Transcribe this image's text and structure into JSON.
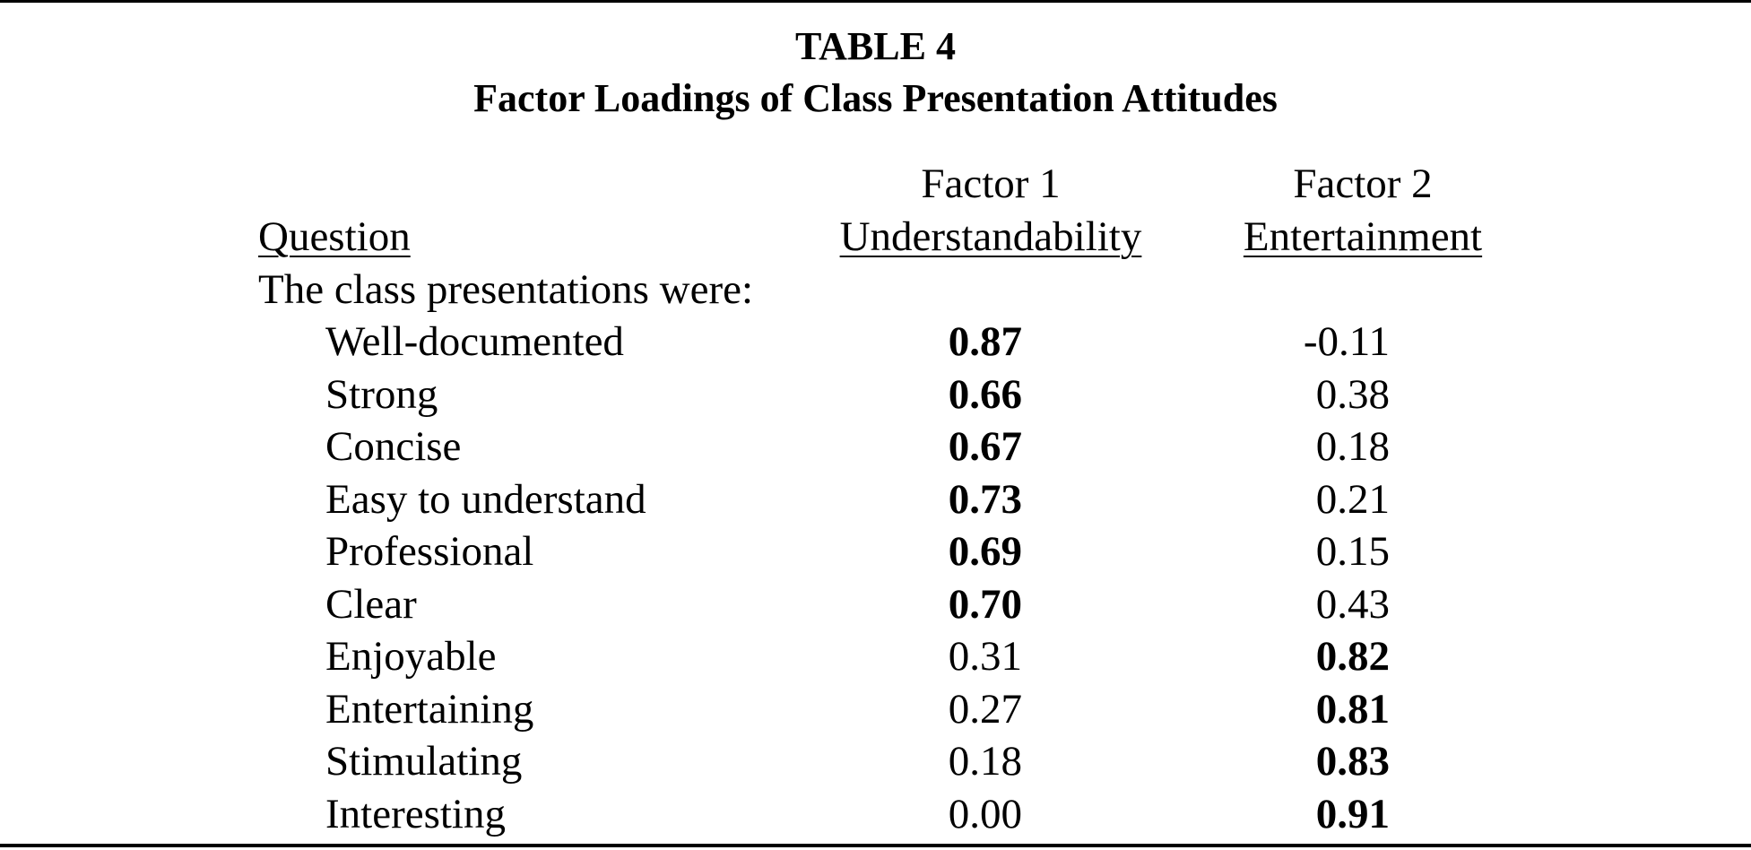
{
  "table": {
    "title": "TABLE 4",
    "subtitle": "Factor Loadings of Class Presentation Attitudes",
    "headers": {
      "question": "Question",
      "factor1_line1": "Factor 1",
      "factor1_line2": "Understandability",
      "factor2_line1": "Factor 2",
      "factor2_line2": "Entertainment"
    },
    "intro": "The class presentations were:",
    "rows": [
      {
        "label": "Well-documented",
        "f1": "0.87",
        "f2": "-0.11",
        "bold": "f1"
      },
      {
        "label": "Strong",
        "f1": "0.66",
        "f2": "0.38",
        "bold": "f1"
      },
      {
        "label": "Concise",
        "f1": "0.67",
        "f2": "0.18",
        "bold": "f1"
      },
      {
        "label": "Easy to understand",
        "f1": "0.73",
        "f2": "0.21",
        "bold": "f1"
      },
      {
        "label": "Professional",
        "f1": "0.69",
        "f2": "0.15",
        "bold": "f1"
      },
      {
        "label": "Clear",
        "f1": "0.70",
        "f2": "0.43",
        "bold": "f1"
      },
      {
        "label": "Enjoyable",
        "f1": "0.31",
        "f2": "0.82",
        "bold": "f2"
      },
      {
        "label": "Entertaining",
        "f1": "0.27",
        "f2": "0.81",
        "bold": "f2"
      },
      {
        "label": "Stimulating",
        "f1": "0.18",
        "f2": "0.83",
        "bold": "f2"
      },
      {
        "label": "Interesting",
        "f1": "0.00",
        "f2": "0.91",
        "bold": "f2"
      }
    ]
  }
}
